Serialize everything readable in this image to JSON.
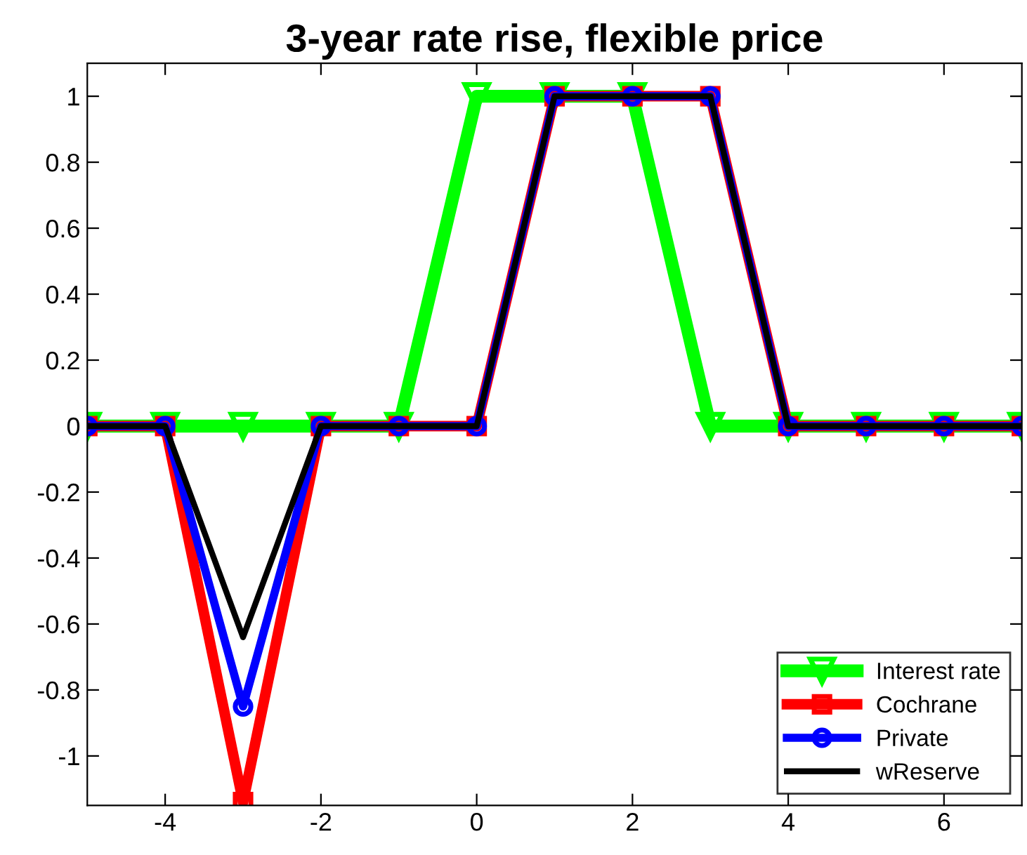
{
  "chart_data": {
    "type": "line",
    "title": "3-year rate rise, flexible price",
    "x": [
      -5,
      -4,
      -3,
      -2,
      -1,
      0,
      1,
      2,
      3,
      4,
      5,
      6,
      7
    ],
    "series": [
      {
        "name": "Interest rate",
        "color": "#00ff00",
        "marker": "triangle",
        "values": [
          0,
          0,
          0,
          0,
          0,
          1,
          1,
          1,
          0,
          0,
          0,
          0,
          0
        ]
      },
      {
        "name": "Cochrane",
        "color": "#ff0000",
        "marker": "square",
        "values": [
          0,
          0,
          -1.14,
          0,
          0,
          0,
          1,
          1,
          1,
          0,
          0,
          0,
          0
        ]
      },
      {
        "name": "Private",
        "color": "#0000ff",
        "marker": "circle",
        "values": [
          0,
          0,
          -0.85,
          0,
          0,
          0,
          1,
          1,
          1,
          0,
          0,
          0,
          0
        ]
      },
      {
        "name": "wReserve",
        "color": "#000000",
        "marker": "none",
        "values": [
          0,
          0,
          -0.64,
          0,
          0,
          0,
          1,
          1,
          1,
          0,
          0,
          0,
          0
        ]
      }
    ],
    "xlim": [
      -5,
      7
    ],
    "xticks": [
      -4,
      -2,
      0,
      2,
      4,
      6
    ],
    "ylim": [
      -1.15,
      1.1
    ],
    "yticks": [
      {
        "value": -1,
        "label": "-1"
      },
      {
        "value": -0.8,
        "label": "-0.8"
      },
      {
        "value": -0.6,
        "label": "-0.6"
      },
      {
        "value": -0.4,
        "label": "-0.4"
      },
      {
        "value": -0.2,
        "label": "-0.2"
      },
      0,
      0.2,
      0.4,
      0.6,
      0.8,
      1
    ],
    "grid": false,
    "legend": "bottom right",
    "line_style": "solid"
  }
}
